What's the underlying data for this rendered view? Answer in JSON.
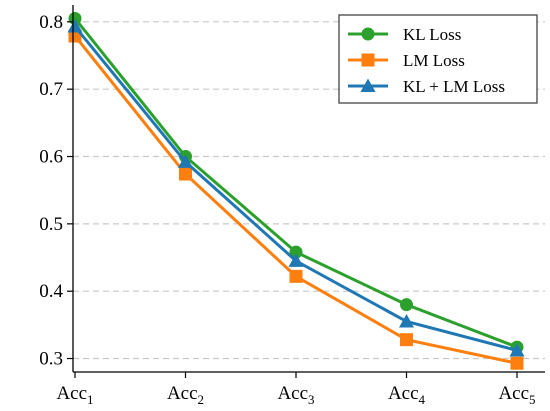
{
  "chart_data": {
    "type": "line",
    "categories": [
      {
        "base": "Acc",
        "sub": "1"
      },
      {
        "base": "Acc",
        "sub": "2"
      },
      {
        "base": "Acc",
        "sub": "3"
      },
      {
        "base": "Acc",
        "sub": "4"
      },
      {
        "base": "Acc",
        "sub": "5"
      }
    ],
    "series": [
      {
        "name": "KL Loss",
        "color": "#2ca02c",
        "marker": "circle",
        "values": [
          0.805,
          0.6,
          0.458,
          0.38,
          0.317
        ]
      },
      {
        "name": "LM Loss",
        "color": "#ff7f0e",
        "marker": "square",
        "values": [
          0.779,
          0.574,
          0.422,
          0.328,
          0.293
        ]
      },
      {
        "name": "KL + LM Loss",
        "color": "#1f77b4",
        "marker": "triangle",
        "values": [
          0.793,
          0.592,
          0.445,
          0.355,
          0.312
        ]
      }
    ],
    "yticks": [
      "0.3",
      "0.4",
      "0.5",
      "0.6",
      "0.7",
      "0.8"
    ],
    "ylim": [
      0.28,
      0.825
    ],
    "grid": "horizontal-dashed",
    "legend_position": "top-right",
    "title": "",
    "xlabel": "",
    "ylabel": ""
  }
}
